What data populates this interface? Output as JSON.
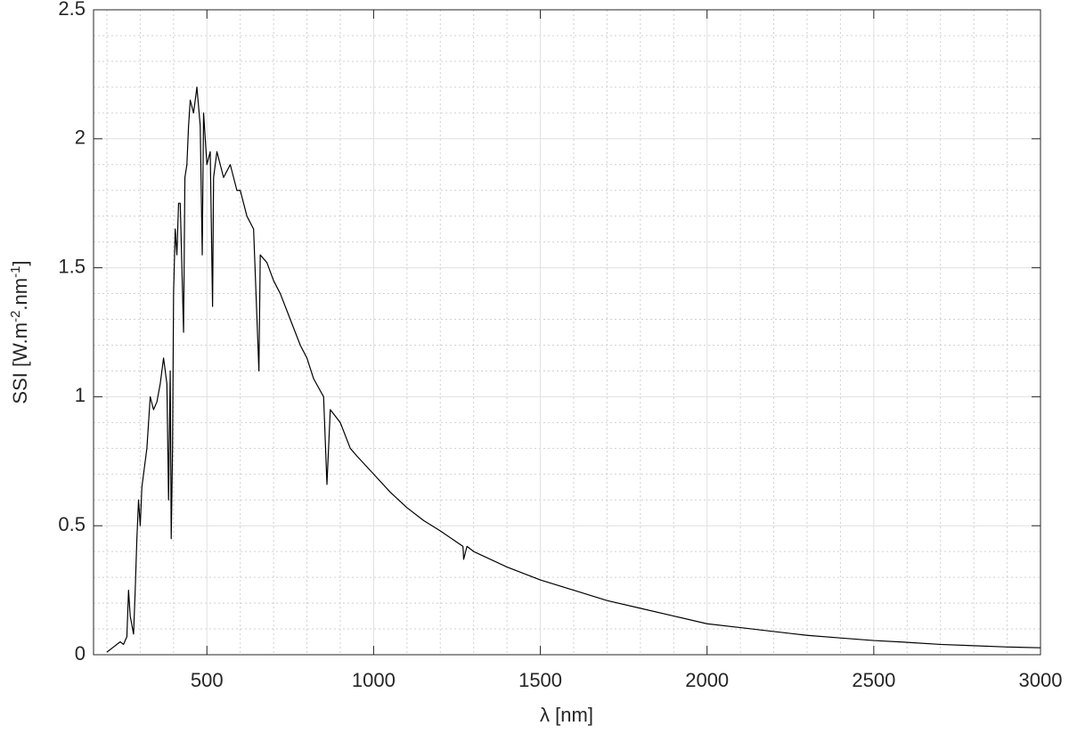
{
  "chart_data": {
    "type": "line",
    "xlabel": "λ [nm]",
    "ylabel": [
      "SSI [W.m",
      "-2",
      ".nm",
      "-1",
      "]"
    ],
    "x": [
      200,
      220,
      240,
      250,
      260,
      265,
      270,
      280,
      285,
      290,
      295,
      300,
      305,
      310,
      320,
      330,
      340,
      350,
      360,
      370,
      380,
      385,
      390,
      393,
      397,
      400,
      405,
      410,
      415,
      420,
      425,
      430,
      434,
      440,
      445,
      450,
      460,
      470,
      480,
      486,
      490,
      500,
      510,
      517,
      520,
      530,
      550,
      570,
      590,
      600,
      620,
      640,
      656,
      660,
      680,
      700,
      720,
      750,
      780,
      800,
      820,
      850,
      860,
      870,
      900,
      930,
      950,
      1000,
      1050,
      1100,
      1150,
      1200,
      1268,
      1270,
      1280,
      1300,
      1400,
      1500,
      1600,
      1700,
      1800,
      1900,
      2000,
      2100,
      2200,
      2300,
      2400,
      2500,
      2600,
      2700,
      2800,
      2900,
      3000
    ],
    "series": [
      {
        "color": "#000000",
        "values": [
          0.01,
          0.03,
          0.05,
          0.04,
          0.07,
          0.25,
          0.15,
          0.08,
          0.25,
          0.45,
          0.6,
          0.5,
          0.65,
          0.7,
          0.8,
          1.0,
          0.95,
          0.98,
          1.05,
          1.15,
          1.05,
          0.6,
          1.1,
          0.45,
          0.8,
          1.4,
          1.65,
          1.55,
          1.75,
          1.75,
          1.5,
          1.25,
          1.85,
          1.9,
          2.05,
          2.15,
          2.1,
          2.2,
          2.05,
          1.55,
          2.1,
          1.9,
          1.95,
          1.35,
          1.85,
          1.95,
          1.85,
          1.9,
          1.8,
          1.8,
          1.7,
          1.65,
          1.1,
          1.55,
          1.52,
          1.45,
          1.4,
          1.3,
          1.2,
          1.15,
          1.07,
          1.0,
          0.66,
          0.95,
          0.9,
          0.8,
          0.77,
          0.7,
          0.63,
          0.57,
          0.52,
          0.48,
          0.42,
          0.37,
          0.42,
          0.4,
          0.34,
          0.29,
          0.25,
          0.21,
          0.18,
          0.15,
          0.12,
          0.105,
          0.09,
          0.075,
          0.065,
          0.055,
          0.048,
          0.04,
          0.035,
          0.03,
          0.027
        ]
      }
    ],
    "xlim": [
      160,
      3000
    ],
    "ylim": [
      0,
      2.5
    ],
    "xticks": [
      500,
      1000,
      1500,
      2000,
      2500,
      3000
    ],
    "yticks": [
      0,
      0.5,
      1,
      1.5,
      2,
      2.5
    ],
    "xminorticks": [
      200,
      300,
      400,
      600,
      700,
      800,
      900,
      1100,
      1200,
      1300,
      1400,
      1600,
      1700,
      1800,
      1900,
      2100,
      2200,
      2300,
      2400,
      2600,
      2700,
      2800,
      2900
    ],
    "yminorticks": [
      0.1,
      0.2,
      0.3,
      0.4,
      0.6,
      0.7,
      0.8,
      0.9,
      1.1,
      1.2,
      1.3,
      1.4,
      1.6,
      1.7,
      1.8,
      1.9,
      2.1,
      2.2,
      2.3,
      2.4
    ],
    "grid": true
  }
}
